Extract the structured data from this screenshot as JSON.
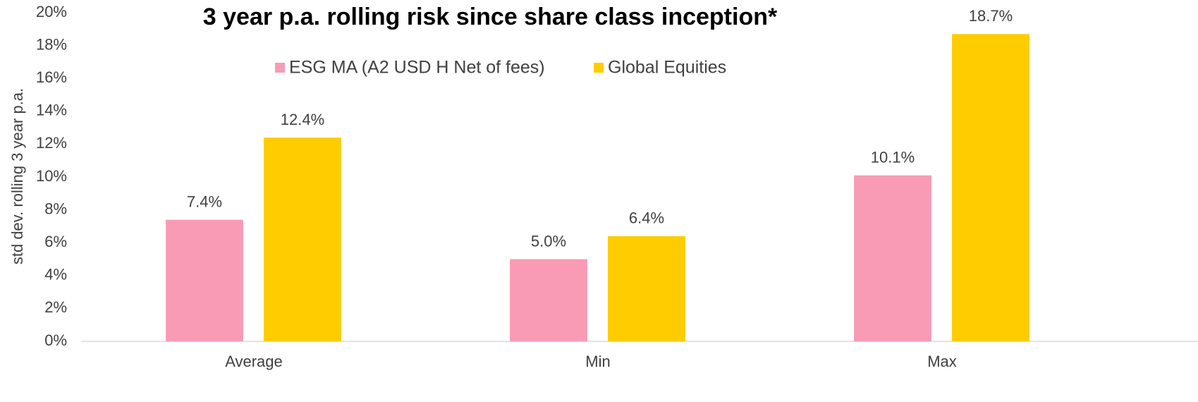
{
  "chart_data": {
    "type": "bar",
    "title": "3 year p.a. rolling risk since share class inception*",
    "y_label": "std dev. rolling 3 year p.a.",
    "categories": [
      "Average",
      "Min",
      "Max"
    ],
    "series": [
      {
        "name": "ESG MA (A2 USD H Net of fees)",
        "color": "#f99bb5",
        "values": [
          7.4,
          5.0,
          10.1
        ],
        "value_labels": [
          "7.4%",
          "5.0%",
          "10.1%"
        ]
      },
      {
        "name": "Global Equities",
        "color": "#ffcc00",
        "values": [
          12.4,
          6.4,
          18.7
        ],
        "value_labels": [
          "12.4%",
          "6.4%",
          "18.7%"
        ]
      }
    ],
    "ylim": [
      0,
      20
    ],
    "yticks": [
      {
        "value": 0,
        "label": "0%"
      },
      {
        "value": 2,
        "label": "2%"
      },
      {
        "value": 4,
        "label": "4%"
      },
      {
        "value": 6,
        "label": "6%"
      },
      {
        "value": 8,
        "label": "8%"
      },
      {
        "value": 10,
        "label": "10%"
      },
      {
        "value": 12,
        "label": "12%"
      },
      {
        "value": 14,
        "label": "14%"
      },
      {
        "value": 16,
        "label": "16%"
      },
      {
        "value": 18,
        "label": "18%"
      },
      {
        "value": 20,
        "label": "20%"
      }
    ],
    "grid": false,
    "legend": "top"
  }
}
